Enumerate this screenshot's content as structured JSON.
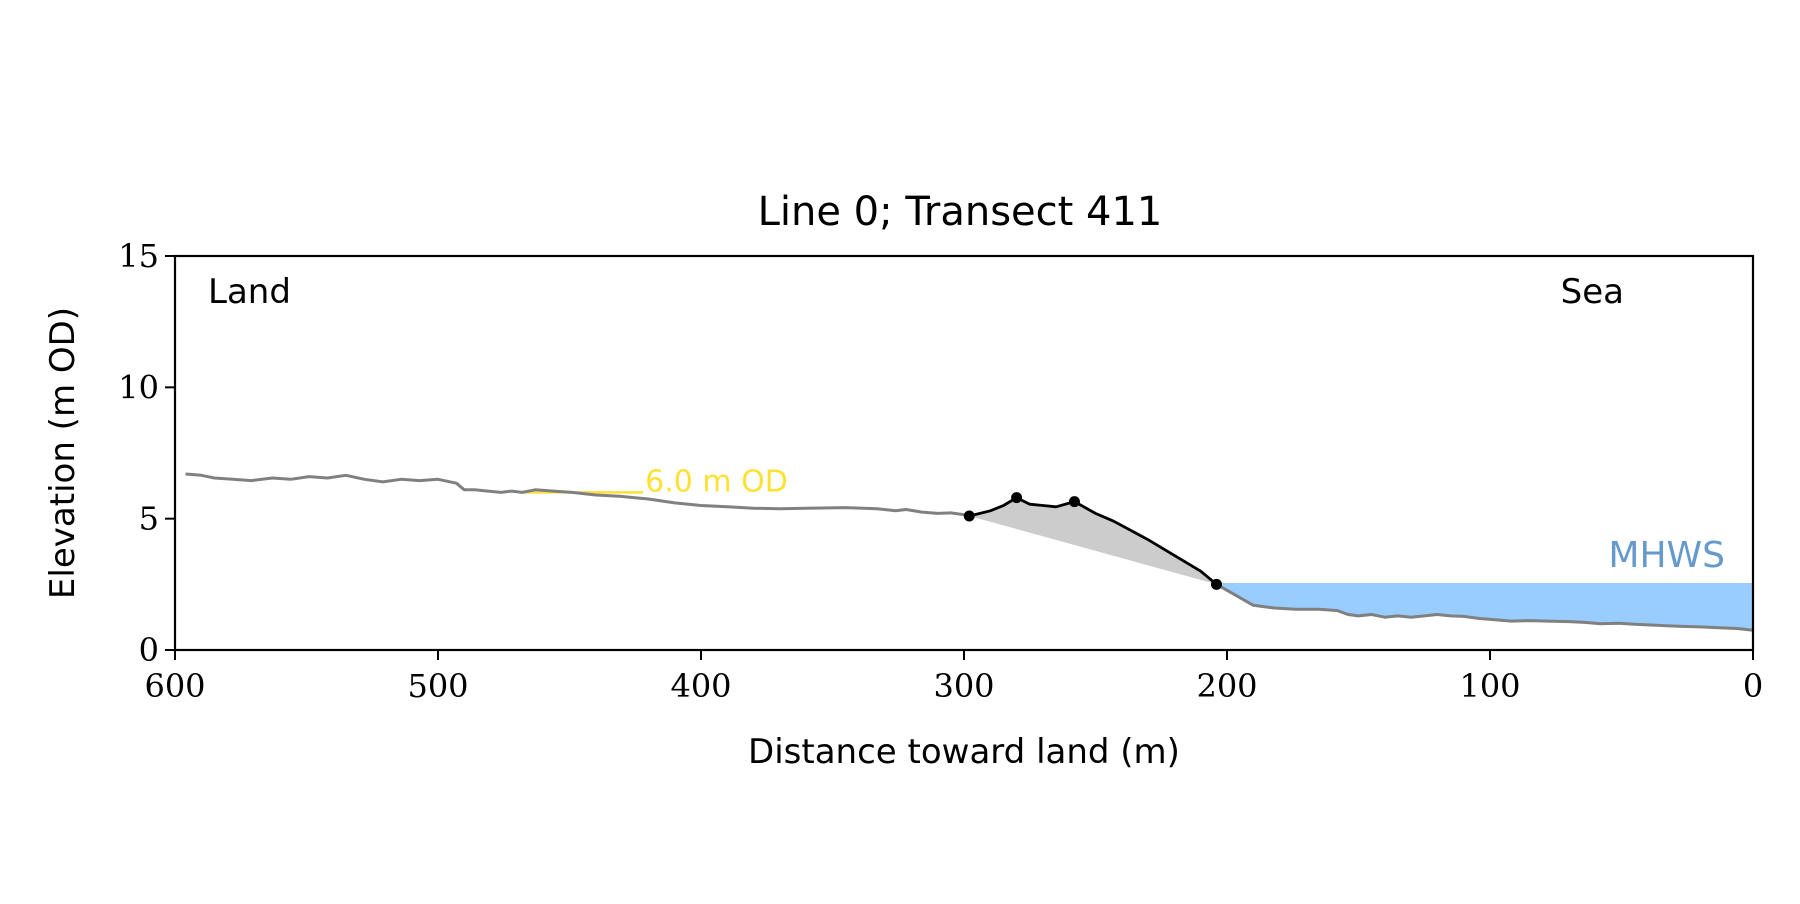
{
  "chart_data": {
    "type": "line",
    "title": "Line 0; Transect 411",
    "xlabel": "Distance toward land (m)",
    "ylabel": "Elevation (m OD)",
    "xlim": [
      600,
      0
    ],
    "ylim": [
      0,
      15
    ],
    "x_ticks": [
      "600",
      "500",
      "400",
      "300",
      "200",
      "100",
      "0"
    ],
    "y_ticks": [
      "0",
      "5",
      "10",
      "15"
    ],
    "grid": false,
    "corner_labels": {
      "left": "Land",
      "right": "Sea"
    },
    "colors": {
      "profile": "#808080",
      "feature": "#000000",
      "feature_fill": "#cccccc",
      "reference": "#ffe033",
      "water": "#99ccff",
      "water_label": "#6699cc"
    },
    "profile": {
      "x": [
        596,
        590,
        585,
        578,
        571,
        563,
        556,
        549,
        542,
        535,
        528,
        521,
        514,
        507,
        500,
        493,
        490,
        486,
        481,
        476,
        472,
        468,
        463,
        456,
        449,
        440,
        431,
        420,
        410,
        400,
        390,
        380,
        370,
        360,
        345,
        333,
        326,
        322,
        316,
        310,
        305,
        300
      ],
      "y": [
        6.7,
        6.65,
        6.55,
        6.5,
        6.45,
        6.55,
        6.5,
        6.6,
        6.55,
        6.65,
        6.5,
        6.4,
        6.5,
        6.45,
        6.5,
        6.35,
        6.1,
        6.1,
        6.05,
        6.0,
        6.05,
        6.0,
        6.1,
        6.05,
        6.0,
        5.9,
        5.85,
        5.75,
        5.6,
        5.5,
        5.45,
        5.4,
        5.38,
        5.4,
        5.42,
        5.38,
        5.3,
        5.35,
        5.25,
        5.2,
        5.22,
        5.15
      ]
    },
    "feature": {
      "x": [
        298,
        290,
        285,
        280,
        275,
        270,
        265,
        258,
        250,
        243,
        230,
        220,
        210,
        204
      ],
      "y": [
        5.1,
        5.3,
        5.5,
        5.8,
        5.55,
        5.5,
        5.45,
        5.65,
        5.2,
        4.9,
        4.2,
        3.6,
        3.0,
        2.5
      ]
    },
    "feature_points": {
      "x": [
        298,
        280,
        258,
        204
      ],
      "y": [
        5.1,
        5.8,
        5.65,
        2.5
      ]
    },
    "lower_profile": {
      "x": [
        204,
        197,
        190,
        182,
        174,
        165,
        158,
        154,
        150,
        145,
        140,
        135,
        130,
        125,
        120,
        115,
        110,
        104,
        98,
        92,
        85,
        78,
        70,
        64,
        58,
        51,
        45,
        39,
        33,
        27,
        20,
        13,
        6,
        0
      ],
      "y": [
        2.5,
        2.1,
        1.7,
        1.6,
        1.55,
        1.55,
        1.5,
        1.35,
        1.3,
        1.35,
        1.25,
        1.3,
        1.25,
        1.3,
        1.35,
        1.3,
        1.28,
        1.2,
        1.15,
        1.1,
        1.12,
        1.1,
        1.08,
        1.05,
        1.0,
        1.02,
        0.98,
        0.95,
        0.92,
        0.9,
        0.88,
        0.85,
        0.82,
        0.75
      ]
    },
    "reference_line": {
      "label": "6.0 m OD",
      "y": 6.0,
      "x_start": 468,
      "x_end": 422
    },
    "water_level": {
      "label": "MHWS",
      "y": 2.55,
      "x_start": 204,
      "x_end": 0
    }
  }
}
